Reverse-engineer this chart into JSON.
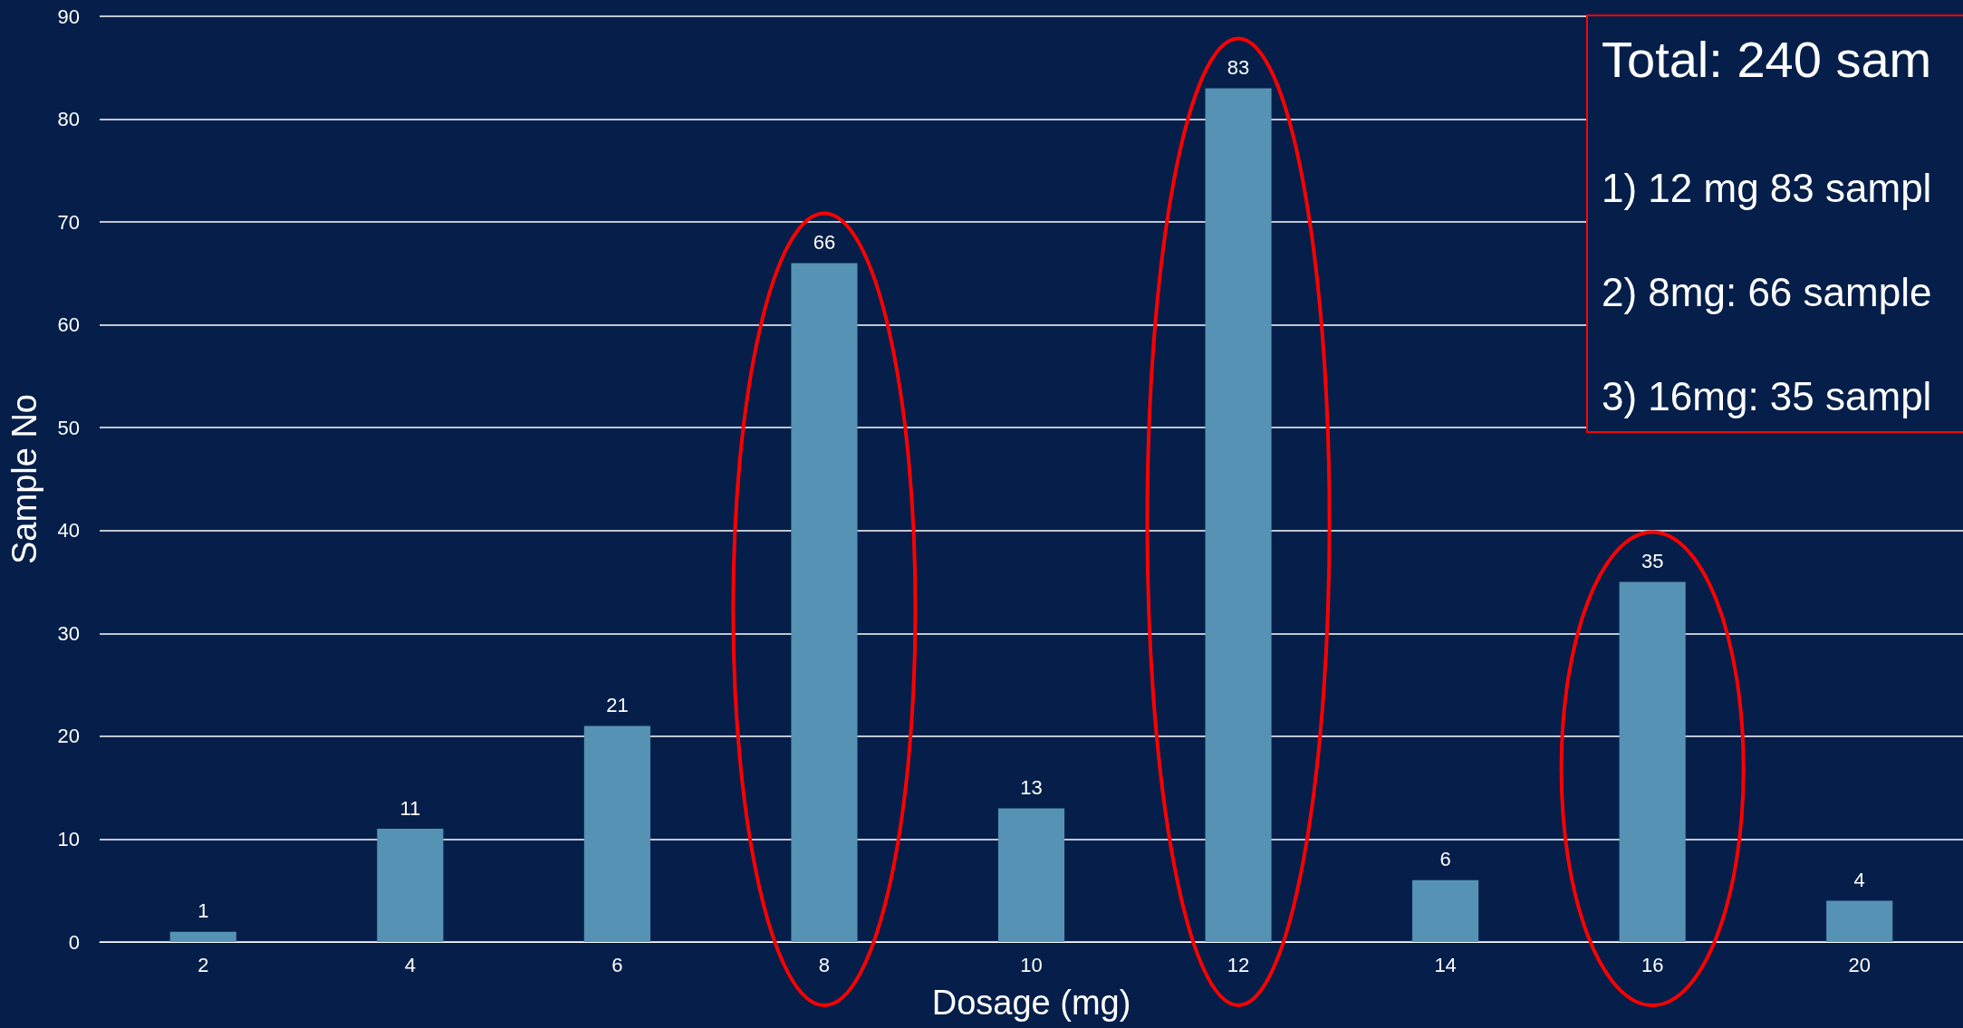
{
  "chart_data": {
    "type": "bar",
    "xlabel": "Dosage (mg)",
    "ylabel": "Sample No",
    "categories": [
      "2",
      "4",
      "6",
      "8",
      "10",
      "12",
      "14",
      "16",
      "20"
    ],
    "values": [
      1,
      11,
      21,
      66,
      13,
      83,
      6,
      35,
      4
    ],
    "color": "#5592b3",
    "ylim": [
      0,
      90
    ],
    "yticks": [
      0,
      10,
      20,
      30,
      40,
      50,
      60,
      70,
      80,
      90
    ],
    "grid": "y",
    "data_labels": true,
    "annotations": [
      "Total: 240 sam",
      "1) 12 mg 83 sampl",
      "2) 8mg: 66 sample",
      "3) 16mg: 35 sampl"
    ]
  }
}
